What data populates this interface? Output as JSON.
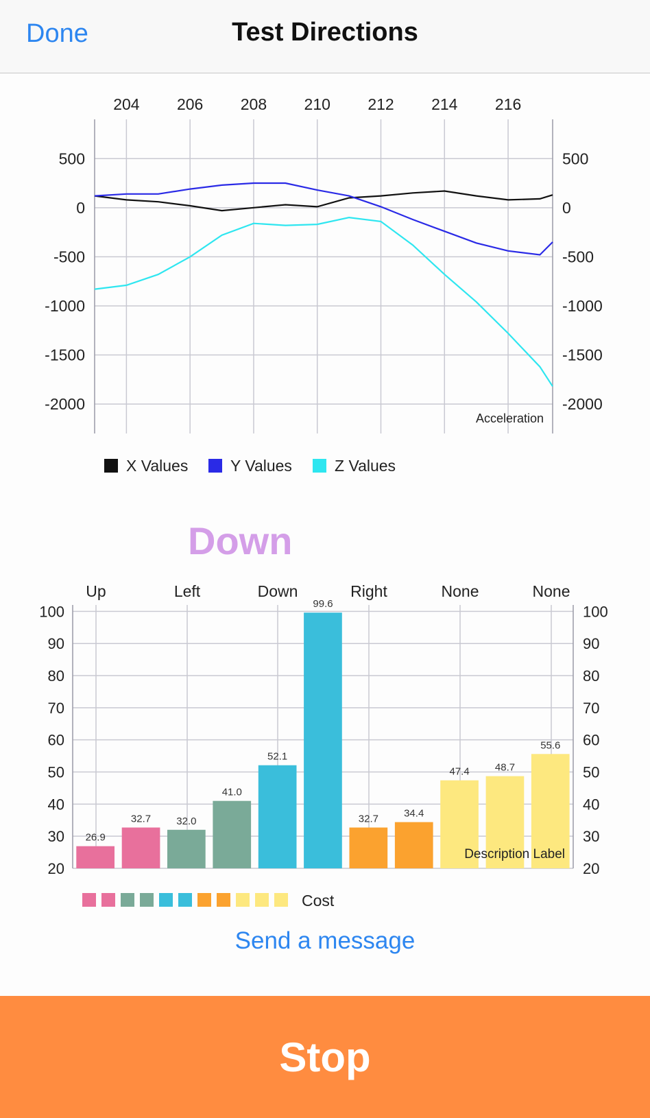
{
  "navbar": {
    "done_label": "Done",
    "title": "Test Directions"
  },
  "direction_label": "Down",
  "send_message_label": "Send a message",
  "stop_label": "Stop",
  "chart_data": [
    {
      "type": "line",
      "description_label": "Acceleration",
      "x_tick_labels": [
        "204",
        "206",
        "208",
        "210",
        "212",
        "214",
        "216"
      ],
      "y_tick_labels": [
        "500",
        "0",
        "-500",
        "-1000",
        "-1500",
        "-2000"
      ],
      "xlim": [
        203,
        217.4
      ],
      "ylim": [
        -2300,
        900
      ],
      "y_ticks": [
        500,
        0,
        -500,
        -1000,
        -1500,
        -2000
      ],
      "x_ticks": [
        204,
        206,
        208,
        210,
        212,
        214,
        216
      ],
      "grid": true,
      "legend_position": "bottom-left",
      "x": [
        203,
        204,
        205,
        206,
        207,
        208,
        209,
        210,
        211,
        212,
        213,
        214,
        215,
        216,
        217,
        217.4
      ],
      "series": [
        {
          "name": "X Values",
          "color": "#111111",
          "values": [
            120,
            80,
            60,
            20,
            -30,
            0,
            30,
            10,
            100,
            120,
            150,
            170,
            120,
            80,
            90,
            130
          ]
        },
        {
          "name": "Y Values",
          "color": "#2a2ae6",
          "values": [
            120,
            140,
            140,
            190,
            230,
            250,
            250,
            180,
            120,
            10,
            -120,
            -240,
            -360,
            -440,
            -480,
            -350
          ]
        },
        {
          "name": "Z Values",
          "color": "#2ee6f0",
          "values": [
            -830,
            -790,
            -680,
            -500,
            -280,
            -160,
            -180,
            -170,
            -100,
            -140,
            -380,
            -680,
            -960,
            -1280,
            -1620,
            -1820
          ]
        }
      ]
    },
    {
      "type": "bar",
      "x_top_labels": [
        "Up",
        "Left",
        "Down",
        "Right",
        "None",
        "None"
      ],
      "y_tick_labels": [
        "100",
        "90",
        "80",
        "70",
        "60",
        "50",
        "40",
        "30",
        "20"
      ],
      "ylim": [
        20,
        102
      ],
      "y_ticks": [
        100,
        90,
        80,
        70,
        60,
        50,
        40,
        30,
        20
      ],
      "grid": true,
      "description_label": "Description Label",
      "legend_label": "Cost",
      "legend_colors": [
        "#e8709c",
        "#e8709c",
        "#7aaa98",
        "#7aaa98",
        "#3abedb",
        "#3abedb",
        "#fba22f",
        "#fba22f",
        "#fde87f",
        "#fde87f",
        "#fde87f"
      ],
      "values": [
        26.9,
        32.7,
        32.0,
        41.0,
        52.1,
        99.6,
        32.7,
        34.4,
        47.4,
        48.7,
        55.6
      ],
      "data_labels": [
        "26.9",
        "32.7",
        "32.0",
        "41.0",
        "52.1",
        "99.6",
        "32.7",
        "34.4",
        "47.4",
        "48.7",
        "55.6"
      ],
      "colors": [
        "#e8709c",
        "#e8709c",
        "#7aaa98",
        "#7aaa98",
        "#3abedb",
        "#3abedb",
        "#fba22f",
        "#fba22f",
        "#fde87f",
        "#fde87f",
        "#fde87f"
      ]
    }
  ]
}
